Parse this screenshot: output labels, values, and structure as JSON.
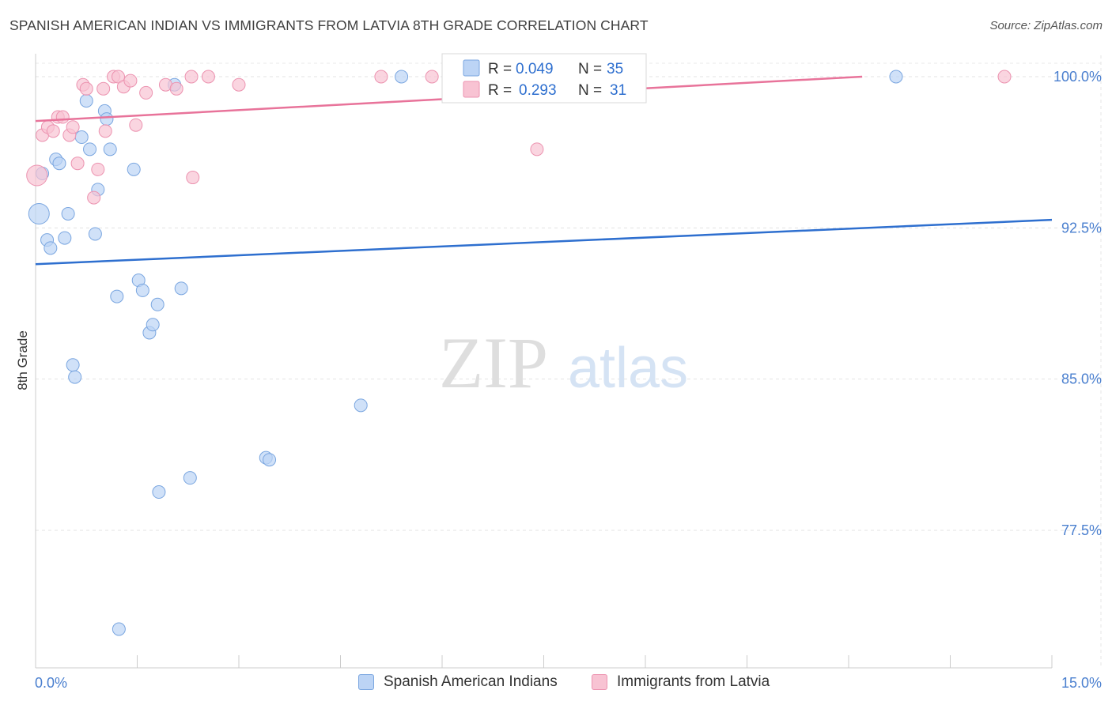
{
  "title": "SPANISH AMERICAN INDIAN VS IMMIGRANTS FROM LATVIA 8TH GRADE CORRELATION CHART",
  "source": "Source: ZipAtlas.com",
  "watermark": {
    "zip": "ZIP",
    "atlas": "atlas"
  },
  "colors": {
    "blue_fill": "#bcd4f5",
    "blue_stroke": "#7aa6e0",
    "blue_line": "#2e6fcf",
    "pink_fill": "#f8c3d3",
    "pink_stroke": "#ec93b0",
    "pink_line": "#e8739a",
    "axis_text": "#4a7fcf"
  },
  "legend_box": {
    "rows": [
      {
        "r_label": "R =",
        "r_value": "0.049",
        "n_label": "N =",
        "n_value": "35",
        "color": "blue"
      },
      {
        "r_label": "R =",
        "r_value": "0.293",
        "n_label": "N =",
        "n_value": "31",
        "color": "pink"
      }
    ]
  },
  "bottom_legend": [
    {
      "label": "Spanish American Indians",
      "color": "blue"
    },
    {
      "label": "Immigrants from Latvia",
      "color": "pink"
    }
  ],
  "chart_data": {
    "type": "scatter",
    "title": "SPANISH AMERICAN INDIAN VS IMMIGRANTS FROM LATVIA 8TH GRADE CORRELATION CHART",
    "xlabel": "",
    "ylabel": "8th Grade",
    "xlim": [
      0,
      15
    ],
    "ylim": [
      70.5,
      101.0
    ],
    "x_tick_labels": [
      {
        "value": 0,
        "label": "0.0%"
      },
      {
        "value": 15,
        "label": "15.0%"
      }
    ],
    "y_tick_labels": [
      {
        "value": 100.0,
        "label": "100.0%"
      },
      {
        "value": 92.5,
        "label": "92.5%"
      },
      {
        "value": 85.0,
        "label": "85.0%"
      },
      {
        "value": 77.5,
        "label": "77.5%"
      }
    ],
    "series": [
      {
        "name": "Spanish American Indians",
        "color": "blue",
        "R": 0.049,
        "N": 35,
        "trend": {
          "x": [
            0,
            15
          ],
          "y": [
            90.7,
            92.9
          ]
        },
        "points": [
          {
            "x": 0.05,
            "y": 93.2,
            "big": true
          },
          {
            "x": 0.1,
            "y": 95.2
          },
          {
            "x": 0.17,
            "y": 91.9
          },
          {
            "x": 0.22,
            "y": 91.5
          },
          {
            "x": 0.3,
            "y": 95.9
          },
          {
            "x": 0.35,
            "y": 95.7
          },
          {
            "x": 0.43,
            "y": 92.0
          },
          {
            "x": 0.48,
            "y": 93.2
          },
          {
            "x": 0.55,
            "y": 85.7
          },
          {
            "x": 0.58,
            "y": 85.1
          },
          {
            "x": 0.68,
            "y": 97.0
          },
          {
            "x": 0.75,
            "y": 98.8
          },
          {
            "x": 0.8,
            "y": 96.4
          },
          {
            "x": 0.88,
            "y": 92.2
          },
          {
            "x": 0.92,
            "y": 94.4
          },
          {
            "x": 1.02,
            "y": 98.3
          },
          {
            "x": 1.05,
            "y": 97.9
          },
          {
            "x": 1.1,
            "y": 96.4
          },
          {
            "x": 1.2,
            "y": 89.1
          },
          {
            "x": 1.23,
            "y": 72.6
          },
          {
            "x": 1.45,
            "y": 95.4
          },
          {
            "x": 1.52,
            "y": 89.9
          },
          {
            "x": 1.58,
            "y": 89.4
          },
          {
            "x": 1.68,
            "y": 87.3
          },
          {
            "x": 1.73,
            "y": 87.7
          },
          {
            "x": 1.8,
            "y": 88.7
          },
          {
            "x": 1.82,
            "y": 79.4
          },
          {
            "x": 2.05,
            "y": 99.6
          },
          {
            "x": 2.15,
            "y": 89.5
          },
          {
            "x": 2.28,
            "y": 80.1
          },
          {
            "x": 3.4,
            "y": 81.1
          },
          {
            "x": 3.45,
            "y": 81.0
          },
          {
            "x": 4.8,
            "y": 83.7
          },
          {
            "x": 5.4,
            "y": 100.0
          },
          {
            "x": 12.7,
            "y": 100.0
          }
        ]
      },
      {
        "name": "Immigrants from Latvia",
        "color": "pink",
        "R": 0.293,
        "N": 31,
        "trend": {
          "x": [
            0,
            12.2
          ],
          "y": [
            97.8,
            100.0
          ]
        },
        "points": [
          {
            "x": 0.02,
            "y": 95.1,
            "big": true
          },
          {
            "x": 0.1,
            "y": 97.1
          },
          {
            "x": 0.18,
            "y": 97.5
          },
          {
            "x": 0.26,
            "y": 97.3
          },
          {
            "x": 0.33,
            "y": 98.0
          },
          {
            "x": 0.4,
            "y": 98.0
          },
          {
            "x": 0.5,
            "y": 97.1
          },
          {
            "x": 0.55,
            "y": 97.5
          },
          {
            "x": 0.62,
            "y": 95.7
          },
          {
            "x": 0.7,
            "y": 99.6
          },
          {
            "x": 0.75,
            "y": 99.4
          },
          {
            "x": 0.86,
            "y": 94.0
          },
          {
            "x": 0.92,
            "y": 95.4
          },
          {
            "x": 1.0,
            "y": 99.4
          },
          {
            "x": 1.03,
            "y": 97.3
          },
          {
            "x": 1.15,
            "y": 100.0
          },
          {
            "x": 1.22,
            "y": 100.0
          },
          {
            "x": 1.3,
            "y": 99.5
          },
          {
            "x": 1.4,
            "y": 99.8
          },
          {
            "x": 1.48,
            "y": 97.6
          },
          {
            "x": 1.63,
            "y": 99.2
          },
          {
            "x": 1.92,
            "y": 99.6
          },
          {
            "x": 2.08,
            "y": 99.4
          },
          {
            "x": 2.3,
            "y": 100.0
          },
          {
            "x": 2.32,
            "y": 95.0
          },
          {
            "x": 2.55,
            "y": 100.0
          },
          {
            "x": 3.0,
            "y": 99.6
          },
          {
            "x": 5.1,
            "y": 100.0
          },
          {
            "x": 5.85,
            "y": 100.0
          },
          {
            "x": 7.4,
            "y": 96.4
          },
          {
            "x": 14.3,
            "y": 100.0
          }
        ]
      }
    ]
  }
}
